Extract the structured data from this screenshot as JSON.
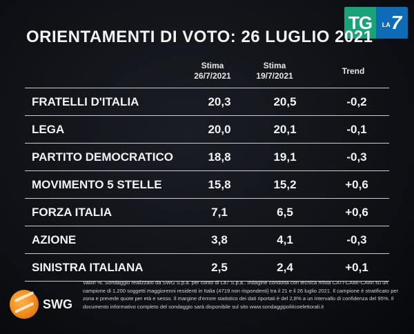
{
  "header": {
    "title": "ORIENTAMENTI DI VOTO: 26 LUGLIO 2021",
    "logo_tg": "TG",
    "logo_la": "LA",
    "logo_seven": "7"
  },
  "columns": {
    "c1_line1": "Stima",
    "c1_line2": "26/7/2021",
    "c2_line1": "Stima",
    "c2_line2": "19/7/2021",
    "c3": "Trend"
  },
  "chart_data": {
    "type": "table",
    "title": "ORIENTAMENTI DI VOTO: 26 LUGLIO 2021",
    "headers": [
      "",
      "Stima 26/7/2021",
      "Stima 19/7/2021",
      "Trend"
    ],
    "rows": [
      {
        "party": "FRATELLI D'ITALIA",
        "stima_26": "20,3",
        "stima_19": "20,5",
        "trend": "-0,2"
      },
      {
        "party": "LEGA",
        "stima_26": "20,0",
        "stima_19": "20,1",
        "trend": "-0,1"
      },
      {
        "party": "PARTITO DEMOCRATICO",
        "stima_26": "18,8",
        "stima_19": "19,1",
        "trend": "-0,3"
      },
      {
        "party": "MOVIMENTO 5 STELLE",
        "stima_26": "15,8",
        "stima_19": "15,2",
        "trend": "+0,6"
      },
      {
        "party": "FORZA ITALIA",
        "stima_26": "7,1",
        "stima_19": "6,5",
        "trend": "+0,6"
      },
      {
        "party": "AZIONE",
        "stima_26": "3,8",
        "stima_19": "4,1",
        "trend": "-0,3"
      },
      {
        "party": "SINISTRA ITALIANA",
        "stima_26": "2,5",
        "stima_19": "2,4",
        "trend": "+0,1"
      }
    ]
  },
  "footer": {
    "swg_label": "SWG",
    "note": "Valori %. Sondaggio realizzato da SWG S.p.a. per conto di La7 S.p.a.. Indagine condotta con tecnica mista CATI-CAMI-CAWI su un campione di 1.200 soggetti maggiorenni residenti in Italia (4719 non rispondenti) tra il 21 e il 26 luglio 2021. Il campione è stratificato per zona e prevede quote per età e sesso. Il margine d'errore statistico dei dati riportati è del 2,8% a un intervallo di confidenza del 95%. Il documento informativo completo del sondaggio sarà disponibile sul sito www.sondaggipoliticoelettorali.it"
  },
  "colors": {
    "background": "#0b0d12",
    "tg_green": "#1aa37a",
    "la7_blue": "#0e6bb6",
    "swg_orange": "#f08a1c"
  }
}
